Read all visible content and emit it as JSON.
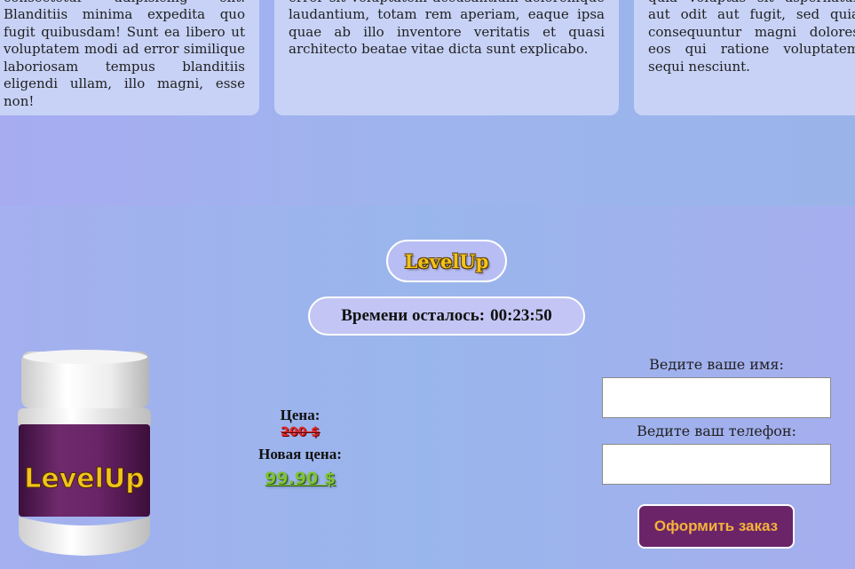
{
  "testimonials": [
    {
      "text": "Lorem ipsum dolor sit amet consectetur adipisicing elit. Blanditiis minima expedita quo fugit quibusdam! Sunt ea libero ut voluptatem modi ad error similique laboriosam tempus blanditiis eligendi ullam, illo magni, esse non!"
    },
    {
      "text": "Sed ut perspiciatis unde omnis iste natus error sit voluptatem accusantium doloremque laudantium, totam rem aperiam, eaque ipsa quae ab illo inventore veritatis et quasi architecto beatae vitae dicta sunt explicabo."
    },
    {
      "text": "Nemo enim ipsam voluptatem quia voluptas sit aspernatur aut odit aut fugit, sed quia consequuntur magni dolores eos qui ratione voluptatem sequi nesciunt."
    }
  ],
  "brand": {
    "name": "LevelUp"
  },
  "timer": {
    "label": "Времени осталось:",
    "value": "00:23:50"
  },
  "product": {
    "label": "LevelUp"
  },
  "price": {
    "label": "Цена:",
    "old": "200 $",
    "new_label": "Новая цена:",
    "new": "99.90 $"
  },
  "form": {
    "name_label": "Ведите ваше имя:",
    "name_value": "",
    "phone_label": "Ведите ваш телефон:",
    "phone_value": "",
    "submit_label": "Оформить заказ"
  },
  "colors": {
    "brand_yellow": "#f2c31b",
    "old_price_red": "#e12a2a",
    "new_price_green": "#7fc33a",
    "button_purple": "#6b2468",
    "button_text": "#f4b23a"
  }
}
